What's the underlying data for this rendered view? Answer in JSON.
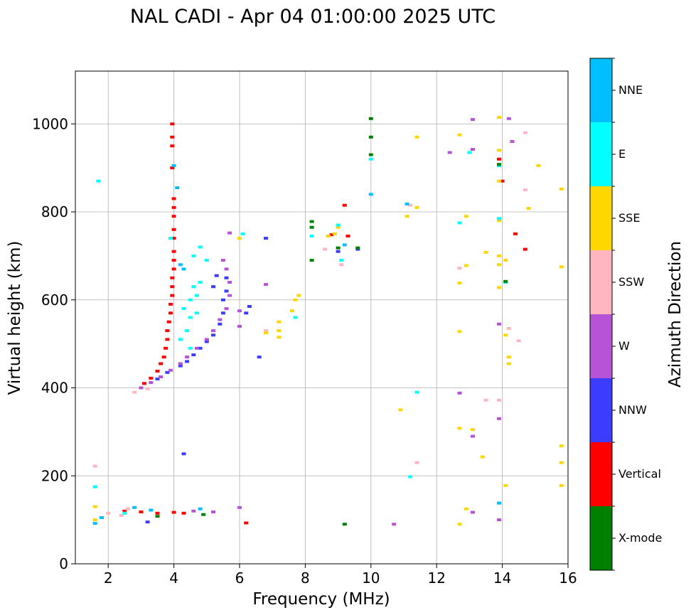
{
  "chart_data": {
    "type": "scatter",
    "title": "NAL CADI - Apr 04 01:00:00 2025 UTC",
    "xlabel": "Frequency (MHz)",
    "ylabel": "Virtual height (km)",
    "xlim": [
      1,
      16
    ],
    "ylim": [
      0,
      1120
    ],
    "x_ticks": [
      2,
      4,
      6,
      8,
      10,
      12,
      14,
      16
    ],
    "x_tick_labels": [
      "2",
      "4",
      "6",
      "8",
      "10",
      "12",
      "14",
      "16"
    ],
    "y_ticks": [
      0,
      200,
      400,
      600,
      800,
      1000
    ],
    "y_tick_labels": [
      "0",
      "200",
      "400",
      "600",
      "800",
      "1000"
    ],
    "grid": true,
    "colorbar": {
      "label": "Azimuth Direction",
      "categories": [
        "X-mode",
        "Vertical",
        "NNW",
        "W",
        "SSW",
        "SSE",
        "E",
        "NNE"
      ],
      "colors": {
        "X-mode": "#008000",
        "Vertical": "#ff0000",
        "NNW": "#3c3cff",
        "W": "#b653d6",
        "SSW": "#ffb6c1",
        "SSE": "#ffd700",
        "E": "#00ffff",
        "NNE": "#00bfff"
      }
    },
    "series": [
      {
        "name": "Vertical",
        "points": [
          [
            3.1,
            410
          ],
          [
            3.3,
            422
          ],
          [
            3.5,
            438
          ],
          [
            3.6,
            455
          ],
          [
            3.7,
            470
          ],
          [
            3.75,
            490
          ],
          [
            3.8,
            510
          ],
          [
            3.8,
            530
          ],
          [
            3.85,
            550
          ],
          [
            3.9,
            570
          ],
          [
            3.9,
            590
          ],
          [
            3.95,
            610
          ],
          [
            3.95,
            630
          ],
          [
            3.95,
            650
          ],
          [
            4.0,
            670
          ],
          [
            4.0,
            690
          ],
          [
            4.0,
            710
          ],
          [
            4.0,
            740
          ],
          [
            4.0,
            760
          ],
          [
            4.0,
            790
          ],
          [
            4.0,
            810
          ],
          [
            4.0,
            830
          ],
          [
            3.95,
            900
          ],
          [
            3.95,
            950
          ],
          [
            3.95,
            970
          ],
          [
            3.95,
            1000
          ],
          [
            2.5,
            120
          ],
          [
            3.0,
            118
          ],
          [
            3.5,
            115
          ],
          [
            4.0,
            117
          ],
          [
            4.3,
            115
          ],
          [
            6.2,
            93
          ],
          [
            9.2,
            815
          ],
          [
            8.8,
            748
          ],
          [
            9.3,
            745
          ],
          [
            14.7,
            715
          ],
          [
            14.4,
            750
          ],
          [
            14.0,
            870
          ],
          [
            13.9,
            920
          ]
        ]
      },
      {
        "name": "NNW",
        "points": [
          [
            3.5,
            420
          ],
          [
            3.8,
            435
          ],
          [
            4.2,
            450
          ],
          [
            4.4,
            460
          ],
          [
            4.6,
            475
          ],
          [
            4.8,
            490
          ],
          [
            5.0,
            505
          ],
          [
            5.2,
            520
          ],
          [
            5.4,
            545
          ],
          [
            5.5,
            570
          ],
          [
            5.5,
            600
          ],
          [
            5.6,
            620
          ],
          [
            5.6,
            650
          ],
          [
            5.3,
            655
          ],
          [
            5.2,
            630
          ],
          [
            6.2,
            570
          ],
          [
            6.3,
            585
          ],
          [
            6.6,
            470
          ],
          [
            6.8,
            740
          ],
          [
            3.2,
            95
          ],
          [
            9.0,
            710
          ],
          [
            9.6,
            715
          ],
          [
            4.3,
            250
          ]
        ]
      },
      {
        "name": "W",
        "points": [
          [
            3.0,
            400
          ],
          [
            3.3,
            412
          ],
          [
            3.6,
            425
          ],
          [
            3.9,
            440
          ],
          [
            4.2,
            455
          ],
          [
            4.4,
            470
          ],
          [
            4.7,
            490
          ],
          [
            5.0,
            510
          ],
          [
            5.2,
            530
          ],
          [
            5.4,
            555
          ],
          [
            5.6,
            580
          ],
          [
            5.7,
            610
          ],
          [
            5.7,
            640
          ],
          [
            5.6,
            670
          ],
          [
            5.5,
            690
          ],
          [
            6.0,
            540
          ],
          [
            6.0,
            575
          ],
          [
            6.8,
            635
          ],
          [
            5.7,
            752
          ],
          [
            4.6,
            120
          ],
          [
            5.2,
            118
          ],
          [
            6.0,
            128
          ],
          [
            12.7,
            388
          ],
          [
            13.1,
            290
          ],
          [
            13.9,
            330
          ],
          [
            13.9,
            545
          ],
          [
            14.3,
            960
          ],
          [
            12.4,
            935
          ],
          [
            13.1,
            1010
          ],
          [
            13.1,
            942
          ],
          [
            14.2,
            1012
          ],
          [
            13.9,
            100
          ],
          [
            10.7,
            90
          ],
          [
            13.1,
            117
          ]
        ]
      },
      {
        "name": "SSW",
        "points": [
          [
            2.8,
            390
          ],
          [
            3.2,
            398
          ],
          [
            1.6,
            222
          ],
          [
            2.0,
            115
          ],
          [
            2.4,
            110
          ],
          [
            2.6,
            125
          ],
          [
            8.6,
            715
          ],
          [
            9.1,
            680
          ],
          [
            11.2,
            815
          ],
          [
            12.7,
            672
          ],
          [
            13.5,
            372
          ],
          [
            13.9,
            372
          ],
          [
            14.2,
            535
          ],
          [
            14.5,
            507
          ],
          [
            14.7,
            850
          ],
          [
            14.7,
            980
          ],
          [
            11.4,
            230
          ],
          [
            6.8,
            530
          ]
        ]
      },
      {
        "name": "SSE",
        "points": [
          [
            1.6,
            130
          ],
          [
            1.6,
            100
          ],
          [
            7.2,
            550
          ],
          [
            7.2,
            530
          ],
          [
            7.2,
            515
          ],
          [
            7.6,
            575
          ],
          [
            7.7,
            600
          ],
          [
            7.8,
            610
          ],
          [
            6.8,
            525
          ],
          [
            8.7,
            745
          ],
          [
            8.9,
            750
          ],
          [
            9.0,
            765
          ],
          [
            11.1,
            790
          ],
          [
            11.4,
            970
          ],
          [
            11.4,
            810
          ],
          [
            12.7,
            975
          ],
          [
            12.7,
            638
          ],
          [
            12.7,
            528
          ],
          [
            12.9,
            678
          ],
          [
            12.9,
            790
          ],
          [
            13.1,
            305
          ],
          [
            13.5,
            708
          ],
          [
            13.4,
            243
          ],
          [
            12.7,
            308
          ],
          [
            12.9,
            125
          ],
          [
            12.7,
            90
          ],
          [
            13.9,
            700
          ],
          [
            13.9,
            680
          ],
          [
            13.9,
            628
          ],
          [
            13.9,
            780
          ],
          [
            13.9,
            870
          ],
          [
            13.9,
            940
          ],
          [
            13.9,
            1015
          ],
          [
            14.1,
            690
          ],
          [
            14.1,
            520
          ],
          [
            14.2,
            470
          ],
          [
            14.2,
            455
          ],
          [
            14.1,
            178
          ],
          [
            14.8,
            808
          ],
          [
            15.1,
            905
          ],
          [
            15.8,
            852
          ],
          [
            15.8,
            675
          ],
          [
            15.8,
            268
          ],
          [
            15.8,
            230
          ],
          [
            15.8,
            178
          ],
          [
            10.9,
            350
          ],
          [
            6.0,
            740
          ]
        ]
      },
      {
        "name": "E",
        "points": [
          [
            4.3,
            580
          ],
          [
            4.5,
            600
          ],
          [
            4.6,
            630
          ],
          [
            4.7,
            610
          ],
          [
            4.5,
            560
          ],
          [
            4.4,
            530
          ],
          [
            4.7,
            570
          ],
          [
            4.8,
            640
          ],
          [
            4.6,
            700
          ],
          [
            4.8,
            720
          ],
          [
            5.0,
            690
          ],
          [
            4.2,
            510
          ],
          [
            4.5,
            490
          ],
          [
            3.9,
            740
          ],
          [
            1.7,
            870
          ],
          [
            6.1,
            750
          ],
          [
            7.7,
            560
          ],
          [
            8.2,
            745
          ],
          [
            9.0,
            770
          ],
          [
            9.1,
            690
          ],
          [
            10.0,
            920
          ],
          [
            11.2,
            198
          ],
          [
            11.4,
            390
          ],
          [
            12.7,
            775
          ],
          [
            13.0,
            935
          ],
          [
            13.9,
            905
          ],
          [
            13.9,
            785
          ],
          [
            14.1,
            640
          ],
          [
            2.5,
            115
          ],
          [
            1.6,
            175
          ]
        ]
      },
      {
        "name": "NNE",
        "points": [
          [
            4.2,
            680
          ],
          [
            4.3,
            670
          ],
          [
            1.6,
            92
          ],
          [
            1.8,
            105
          ],
          [
            2.8,
            128
          ],
          [
            3.3,
            122
          ],
          [
            4.0,
            905
          ],
          [
            4.1,
            855
          ],
          [
            9.2,
            725
          ],
          [
            10.0,
            840
          ],
          [
            11.1,
            818
          ],
          [
            13.9,
            138
          ],
          [
            4.8,
            125
          ]
        ]
      },
      {
        "name": "X-mode",
        "points": [
          [
            8.2,
            778
          ],
          [
            8.2,
            765
          ],
          [
            8.2,
            690
          ],
          [
            9.0,
            718
          ],
          [
            9.6,
            718
          ],
          [
            10.0,
            1012
          ],
          [
            10.0,
            970
          ],
          [
            10.0,
            930
          ],
          [
            9.2,
            90
          ],
          [
            4.9,
            112
          ],
          [
            3.5,
            108
          ],
          [
            13.9,
            908
          ],
          [
            14.1,
            642
          ]
        ]
      }
    ]
  }
}
